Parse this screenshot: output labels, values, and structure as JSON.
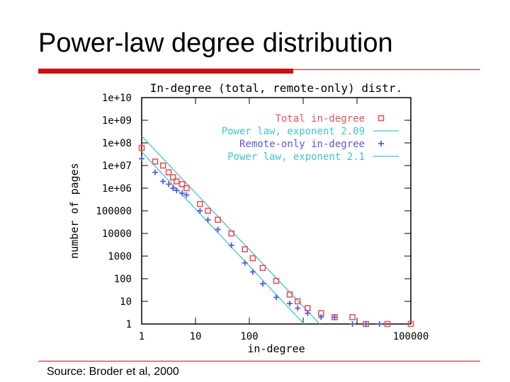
{
  "slide": {
    "title": "Power-law degree distribution",
    "source": "Source: Broder et al, 2000"
  },
  "colors": {
    "accent_red": "#cc1111",
    "series_total": "#e8545a",
    "series_remote": "#5b57e0",
    "fit_line": "#3fc6c9"
  },
  "chart_data": {
    "type": "scatter",
    "title": "In-degree (total, remote-only) distr.",
    "xlabel": "in-degree",
    "ylabel": "number of pages",
    "xscale": "log",
    "yscale": "log",
    "xlim": [
      1,
      1000000
    ],
    "ylim": [
      1,
      10000000000
    ],
    "x_ticks": [
      "1",
      "10",
      "100",
      "",
      "",
      "100000"
    ],
    "y_ticks": [
      "1",
      "10",
      "100",
      "1000",
      "10000",
      "100000",
      "1e+06",
      "1e+07",
      "1e+08",
      "1e+09",
      "1e+10"
    ],
    "legend_position": "top-right",
    "series": [
      {
        "name": "Total in-degree",
        "marker": "square",
        "x": [
          1,
          2,
          3,
          4,
          5,
          6,
          8,
          10,
          20,
          30,
          50,
          100,
          200,
          300,
          500,
          1000,
          2000,
          3000,
          5000,
          10000,
          20000,
          50000,
          100000,
          300000,
          1000000
        ],
        "y": [
          60000000,
          15000000,
          10000000,
          5000000,
          3000000,
          2000000,
          1500000,
          1000000,
          200000,
          100000,
          40000,
          10000,
          2000,
          800,
          300,
          80,
          20,
          10,
          5,
          3,
          2,
          2,
          1,
          1,
          1
        ]
      },
      {
        "name": "Remote-only in-degree",
        "marker": "plus",
        "x": [
          1,
          2,
          3,
          4,
          5,
          6,
          8,
          10,
          20,
          30,
          50,
          100,
          200,
          300,
          500,
          1000,
          2000,
          3000,
          5000,
          10000,
          20000,
          50000,
          100000,
          200000
        ],
        "y": [
          20000000,
          5000000,
          2000000,
          1500000,
          1000000,
          800000,
          600000,
          500000,
          100000,
          40000,
          15000,
          3000,
          500,
          200,
          60,
          15,
          8,
          5,
          3,
          2,
          2,
          1,
          1,
          1
        ]
      }
    ],
    "fits": [
      {
        "name": "Power law, exponent 2.09",
        "exponent": 2.09,
        "c": 200000000
      },
      {
        "name": "Power law, exponent 2.1",
        "exponent": 2.1,
        "c": 40000000
      }
    ]
  }
}
